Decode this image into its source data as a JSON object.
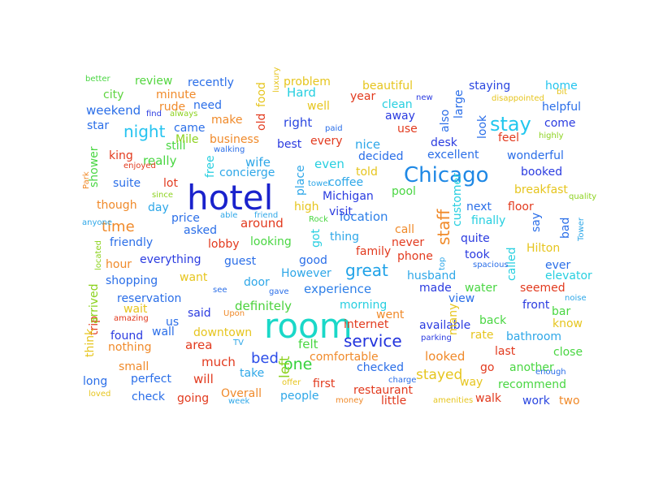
{
  "words": [
    {
      "text": "hotel",
      "color": "#1a22cc"
    },
    {
      "text": "room",
      "color": "#1ad8c8"
    },
    {
      "text": "Chicago",
      "color": "#1e88e5"
    },
    {
      "text": "stay",
      "color": "#22c7ee"
    },
    {
      "text": "great",
      "color": "#1fa2e8"
    },
    {
      "text": "service",
      "color": "#2233dd"
    },
    {
      "text": "staff",
      "color": "#f08a2a"
    },
    {
      "text": "night",
      "color": "#25c3f0"
    },
    {
      "text": "one",
      "color": "#34d13a"
    },
    {
      "text": "bed",
      "color": "#2b4ce8"
    },
    {
      "text": "time",
      "color": "#f08a2a"
    },
    {
      "text": "stayed",
      "color": "#e6c51e"
    },
    {
      "text": "location",
      "color": "#2c7fe8"
    },
    {
      "text": "area",
      "color": "#e23a1e"
    },
    {
      "text": "comfortable",
      "color": "#f08a2a"
    },
    {
      "text": "looked",
      "color": "#f08a2a"
    },
    {
      "text": "left",
      "color": "#8cd21e"
    },
    {
      "text": "felt",
      "color": "#49d642"
    },
    {
      "text": "much",
      "color": "#e23a1e"
    },
    {
      "text": "will",
      "color": "#e23a1e"
    },
    {
      "text": "experience",
      "color": "#2e7fe8"
    },
    {
      "text": "definitely",
      "color": "#4bd23c"
    },
    {
      "text": "even",
      "color": "#27cfe0"
    },
    {
      "text": "place",
      "color": "#2ea7e8"
    },
    {
      "text": "best",
      "color": "#2a3be0"
    },
    {
      "text": "wife",
      "color": "#2ea7e8"
    },
    {
      "text": "nice",
      "color": "#2ea7e8"
    },
    {
      "text": "right",
      "color": "#2a46e0"
    },
    {
      "text": "Hard",
      "color": "#27cfe0"
    },
    {
      "text": "problem",
      "color": "#e6c51e"
    },
    {
      "text": "beautiful",
      "color": "#e6c51e"
    },
    {
      "text": "staying",
      "color": "#2a46e0"
    },
    {
      "text": "home",
      "color": "#23c4ee"
    },
    {
      "text": "recently",
      "color": "#2a6ee8"
    },
    {
      "text": "review",
      "color": "#54d640"
    },
    {
      "text": "city",
      "color": "#5fd440"
    },
    {
      "text": "minute",
      "color": "#f08a2a"
    },
    {
      "text": "weekend",
      "color": "#2a6ee8"
    },
    {
      "text": "rude",
      "color": "#f08a2a"
    },
    {
      "text": "need",
      "color": "#2a6ee8"
    },
    {
      "text": "star",
      "color": "#2a6ee8"
    },
    {
      "text": "came",
      "color": "#2a6ee8"
    },
    {
      "text": "make",
      "color": "#f08a2a"
    },
    {
      "text": "business",
      "color": "#f08a2a"
    },
    {
      "text": "every",
      "color": "#e23a1e"
    },
    {
      "text": "still",
      "color": "#49d642"
    },
    {
      "text": "king",
      "color": "#e23a1e"
    },
    {
      "text": "really",
      "color": "#49d642"
    },
    {
      "text": "free",
      "color": "#27cfe0"
    },
    {
      "text": "concierge",
      "color": "#2ea7e8"
    },
    {
      "text": "suite",
      "color": "#2a6ee8"
    },
    {
      "text": "lot",
      "color": "#e23a1e"
    },
    {
      "text": "though",
      "color": "#f08a2a"
    },
    {
      "text": "day",
      "color": "#2ea7e8"
    },
    {
      "text": "price",
      "color": "#2a6ee8"
    },
    {
      "text": "asked",
      "color": "#2a6ee8"
    },
    {
      "text": "around",
      "color": "#e23a1e"
    },
    {
      "text": "Michigan",
      "color": "#2a3be0"
    },
    {
      "text": "coffee",
      "color": "#2ea7e8"
    },
    {
      "text": "told",
      "color": "#e6c51e"
    },
    {
      "text": "high",
      "color": "#e6c51e"
    },
    {
      "text": "friendly",
      "color": "#2a6ee8"
    },
    {
      "text": "lobby",
      "color": "#e23a1e"
    },
    {
      "text": "looking",
      "color": "#49d642"
    },
    {
      "text": "guest",
      "color": "#2a6ee8"
    },
    {
      "text": "everything",
      "color": "#2a3be0"
    },
    {
      "text": "hour",
      "color": "#f08a2a"
    },
    {
      "text": "shopping",
      "color": "#2a6ee8"
    },
    {
      "text": "want",
      "color": "#e6c51e"
    },
    {
      "text": "door",
      "color": "#2ea7e8"
    },
    {
      "text": "reservation",
      "color": "#2a6ee8"
    },
    {
      "text": "wait",
      "color": "#e6c51e"
    },
    {
      "text": "us",
      "color": "#2a6ee8"
    },
    {
      "text": "said",
      "color": "#2a3be0"
    },
    {
      "text": "found",
      "color": "#2a3be0"
    },
    {
      "text": "wall",
      "color": "#2a6ee8"
    },
    {
      "text": "downtown",
      "color": "#e6c51e"
    },
    {
      "text": "nothing",
      "color": "#f08a2a"
    },
    {
      "text": "small",
      "color": "#f08a2a"
    },
    {
      "text": "perfect",
      "color": "#2a6ee8"
    },
    {
      "text": "long",
      "color": "#2a6ee8"
    },
    {
      "text": "check",
      "color": "#2a6ee8"
    },
    {
      "text": "going",
      "color": "#e23a1e"
    },
    {
      "text": "take",
      "color": "#2ea7e8"
    },
    {
      "text": "Overall",
      "color": "#f08a2a"
    },
    {
      "text": "people",
      "color": "#2ea7e8"
    },
    {
      "text": "first",
      "color": "#e23a1e"
    },
    {
      "text": "checked",
      "color": "#2a6ee8"
    },
    {
      "text": "restaurant",
      "color": "#e23a1e"
    },
    {
      "text": "little",
      "color": "#e23a1e"
    },
    {
      "text": "walk",
      "color": "#e23a1e"
    },
    {
      "text": "way",
      "color": "#e6c51e"
    },
    {
      "text": "recommend",
      "color": "#49d642"
    },
    {
      "text": "work",
      "color": "#2a46e0"
    },
    {
      "text": "two",
      "color": "#f08a2a"
    },
    {
      "text": "go",
      "color": "#e23a1e"
    },
    {
      "text": "another",
      "color": "#49d642"
    },
    {
      "text": "last",
      "color": "#e23a1e"
    },
    {
      "text": "close",
      "color": "#49d642"
    },
    {
      "text": "rate",
      "color": "#e6c51e"
    },
    {
      "text": "bathroom",
      "color": "#2ea7e8"
    },
    {
      "text": "know",
      "color": "#e6c51e"
    },
    {
      "text": "bar",
      "color": "#49d642"
    },
    {
      "text": "back",
      "color": "#49d642"
    },
    {
      "text": "front",
      "color": "#2a3be0"
    },
    {
      "text": "seemed",
      "color": "#e23a1e"
    },
    {
      "text": "elevator",
      "color": "#27cfe0"
    },
    {
      "text": "ever",
      "color": "#2a6ee8"
    },
    {
      "text": "Hilton",
      "color": "#e6c51e"
    },
    {
      "text": "bad",
      "color": "#2a6ee8"
    },
    {
      "text": "say",
      "color": "#2a6ee8"
    },
    {
      "text": "called",
      "color": "#27cfe0"
    },
    {
      "text": "quite",
      "color": "#2a3be0"
    },
    {
      "text": "took",
      "color": "#2a3be0"
    },
    {
      "text": "finally",
      "color": "#27cfe0"
    },
    {
      "text": "floor",
      "color": "#e23a1e"
    },
    {
      "text": "next",
      "color": "#2a6ee8"
    },
    {
      "text": "breakfast",
      "color": "#e6c51e"
    },
    {
      "text": "booked",
      "color": "#2a3be0"
    },
    {
      "text": "wonderful",
      "color": "#2a6ee8"
    },
    {
      "text": "excellent",
      "color": "#2a6ee8"
    },
    {
      "text": "feel",
      "color": "#e23a1e"
    },
    {
      "text": "come",
      "color": "#2a3be0"
    },
    {
      "text": "helpful",
      "color": "#2a6ee8"
    },
    {
      "text": "look",
      "color": "#2a6ee8"
    },
    {
      "text": "desk",
      "color": "#2a3be0"
    },
    {
      "text": "decided",
      "color": "#2a6ee8"
    },
    {
      "text": "use",
      "color": "#e23a1e"
    },
    {
      "text": "away",
      "color": "#2a3be0"
    },
    {
      "text": "clean",
      "color": "#27cfe0"
    },
    {
      "text": "also",
      "color": "#2a6ee8"
    },
    {
      "text": "large",
      "color": "#2a6ee8"
    },
    {
      "text": "year",
      "color": "#e23a1e"
    },
    {
      "text": "well",
      "color": "#e6c51e"
    },
    {
      "text": "old",
      "color": "#e23a1e"
    },
    {
      "text": "food",
      "color": "#e6c51e"
    },
    {
      "text": "pool",
      "color": "#49d642"
    },
    {
      "text": "visit",
      "color": "#2a3be0"
    },
    {
      "text": "call",
      "color": "#f08a2a"
    },
    {
      "text": "customer",
      "color": "#27cfe0"
    },
    {
      "text": "never",
      "color": "#e23a1e"
    },
    {
      "text": "family",
      "color": "#e23a1e"
    },
    {
      "text": "thing",
      "color": "#2ea7e8"
    },
    {
      "text": "got",
      "color": "#27cfe0"
    },
    {
      "text": "good",
      "color": "#2a6ee8"
    },
    {
      "text": "However",
      "color": "#2ea7e8"
    },
    {
      "text": "husband",
      "color": "#2ea7e8"
    },
    {
      "text": "phone",
      "color": "#e23a1e"
    },
    {
      "text": "made",
      "color": "#2a3be0"
    },
    {
      "text": "water",
      "color": "#49d642"
    },
    {
      "text": "view",
      "color": "#2a6ee8"
    },
    {
      "text": "morning",
      "color": "#27cfe0"
    },
    {
      "text": "went",
      "color": "#f08a2a"
    },
    {
      "text": "internet",
      "color": "#e23a1e"
    },
    {
      "text": "available",
      "color": "#2a3be0"
    },
    {
      "text": "many",
      "color": "#e6c51e"
    },
    {
      "text": "trip",
      "color": "#e23a1e"
    },
    {
      "text": "arrived",
      "color": "#8cd21e"
    },
    {
      "text": "think",
      "color": "#e6c51e"
    },
    {
      "text": "shower",
      "color": "#49d642"
    },
    {
      "text": "better",
      "color": "#49d642"
    },
    {
      "text": "find",
      "color": "#2a3be0"
    },
    {
      "text": "always",
      "color": "#8cd21e"
    },
    {
      "text": "Mile",
      "color": "#8cd21e"
    },
    {
      "text": "luxury",
      "color": "#e6c51e"
    },
    {
      "text": "new",
      "color": "#2a3be0"
    },
    {
      "text": "paid",
      "color": "#2a6ee8"
    },
    {
      "text": "bit",
      "color": "#e6c51e"
    },
    {
      "text": "disappointed",
      "color": "#e6c51e"
    },
    {
      "text": "highly",
      "color": "#8cd21e"
    },
    {
      "text": "walking",
      "color": "#2a6ee8"
    },
    {
      "text": "enjoyed",
      "color": "#e23a1e"
    },
    {
      "text": "Park",
      "color": "#f08a2a"
    },
    {
      "text": "towel",
      "color": "#2ea7e8"
    },
    {
      "text": "since",
      "color": "#8cd21e"
    },
    {
      "text": "able",
      "color": "#2ea7e8"
    },
    {
      "text": "friend",
      "color": "#2ea7e8"
    },
    {
      "text": "Rock",
      "color": "#49d642"
    },
    {
      "text": "quality",
      "color": "#8cd21e"
    },
    {
      "text": "Tower",
      "color": "#2ea7e8"
    },
    {
      "text": "anyone",
      "color": "#2ea7e8"
    },
    {
      "text": "located",
      "color": "#8cd21e"
    },
    {
      "text": "top",
      "color": "#2ea7e8"
    },
    {
      "text": "spacious",
      "color": "#2a6ee8"
    },
    {
      "text": "see",
      "color": "#2a6ee8"
    },
    {
      "text": "gave",
      "color": "#2a6ee8"
    },
    {
      "text": "Upon",
      "color": "#f08a2a"
    },
    {
      "text": "noise",
      "color": "#2ea7e8"
    },
    {
      "text": "amazing",
      "color": "#e23a1e"
    },
    {
      "text": "TV",
      "color": "#2ea7e8"
    },
    {
      "text": "parking",
      "color": "#2a3be0"
    },
    {
      "text": "offer",
      "color": "#e6c51e"
    },
    {
      "text": "charge",
      "color": "#2a6ee8"
    },
    {
      "text": "loved",
      "color": "#e6c51e"
    },
    {
      "text": "week",
      "color": "#2ea7e8"
    },
    {
      "text": "money",
      "color": "#f08a2a"
    },
    {
      "text": "amenities",
      "color": "#e6c51e"
    },
    {
      "text": "enough",
      "color": "#2a6ee8"
    },
    {
      "text": "manager",
      "color": "#8cd21e"
    },
    {
      "text": "extremely",
      "color": "#8cd21e"
    }
  ]
}
